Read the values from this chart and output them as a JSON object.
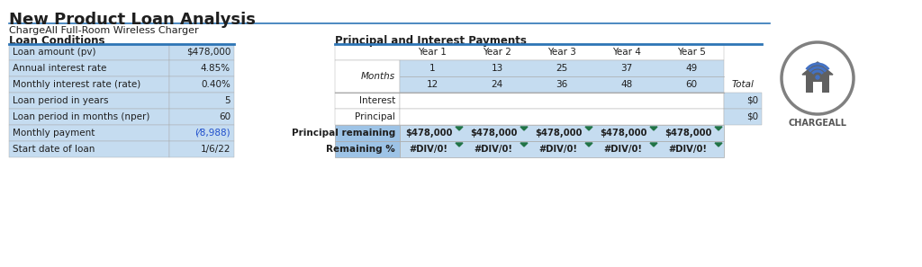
{
  "title": "New Product Loan Analysis",
  "subtitle": "ChargeAll Full-Room Wireless Charger",
  "loan_conditions_header": "Loan Conditions",
  "loan_rows": [
    [
      "Loan amount (pv)",
      "$478,000"
    ],
    [
      "Annual interest rate",
      "4.85%"
    ],
    [
      "Monthly interest rate (rate)",
      "0.40%"
    ],
    [
      "Loan period in years",
      "5"
    ],
    [
      "Loan period in months (nper)",
      "60"
    ],
    [
      "Monthly payment",
      "(⁄8,988)"
    ],
    [
      "Start date of loan",
      "1/6/22"
    ]
  ],
  "monthly_payment_color": "#1F4FCC",
  "pi_header": "Principal and Interest Payments",
  "year_labels": [
    "Year 1",
    "Year 2",
    "Year 3",
    "Year 4",
    "Year 5"
  ],
  "months_label": "Months",
  "month_starts": [
    "1",
    "13",
    "25",
    "37",
    "49"
  ],
  "month_ends": [
    "12",
    "24",
    "36",
    "48",
    "60"
  ],
  "total_label": "Total",
  "interest_label": "Interest",
  "principal_label": "Principal",
  "interest_total": "$0",
  "principal_total": "$0",
  "pr_label": "Principal remaining",
  "remaining_pct_label": "Remaining %",
  "pr_values": [
    "$478,000",
    "$478,000",
    "$478,000",
    "$478,000",
    "$478,000"
  ],
  "remaining_pct_values": [
    "#DIV/0!",
    "#DIV/0!",
    "#DIV/0!",
    "#DIV/0!",
    "#DIV/0!"
  ],
  "bg_white": "#FFFFFF",
  "bg_light_blue": "#C5DCF0",
  "bg_medium_blue": "#9DC3E6",
  "text_dark": "#1F1F1F",
  "text_blue": "#1F4FCC",
  "border_dark": "#2E75B6",
  "border_light": "#AAAAAA",
  "green_triangle": "#217346",
  "logo_circle_color": "#808080",
  "logo_house_color": "#606060",
  "logo_wifi_color": "#4472C4",
  "chargeall_text": "CHARGEALL",
  "figw": 10.24,
  "figh": 2.97,
  "dpi": 100
}
